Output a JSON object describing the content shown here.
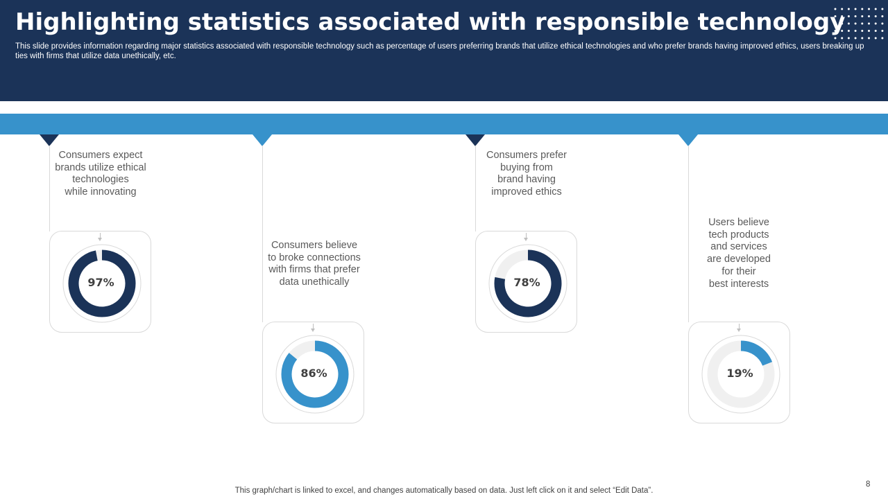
{
  "slide": {
    "title": "Highlighting statistics associated with responsible technology",
    "subtitle": "This slide provides information regarding major statistics associated with responsible technology such as percentage of users preferring brands that utilize ethical technologies and who prefer brands having improved ethics, users breaking up ties with firms that utilize data unethically, etc.",
    "footer_note": "This graph/chart is linked to excel,  and changes automatically based on data. Just left click on it and select “Edit Data”.",
    "page_number": "8"
  },
  "colors": {
    "dark_navy": "#1b3358",
    "accent_blue": "#3792cb",
    "ring_track": "#f0f0f0"
  },
  "stats": [
    {
      "label": "Consumers expect\nbrands utilize ethical\ntechnologies\nwhile innovating",
      "percent_text": "97%",
      "value": 97,
      "color": "#1b3358"
    },
    {
      "label": "Consumers believe\nto broke connections\nwith firms that prefer\ndata unethically",
      "percent_text": "86%",
      "value": 86,
      "color": "#3792cb"
    },
    {
      "label": "Consumers prefer\nbuying from\nbrand having\nimproved ethics",
      "percent_text": "78%",
      "value": 78,
      "color": "#1b3358"
    },
    {
      "label": "Users believe\ntech products\nand services\nare developed\nfor their\nbest interests",
      "percent_text": "19%",
      "value": 19,
      "color": "#3792cb"
    }
  ]
}
